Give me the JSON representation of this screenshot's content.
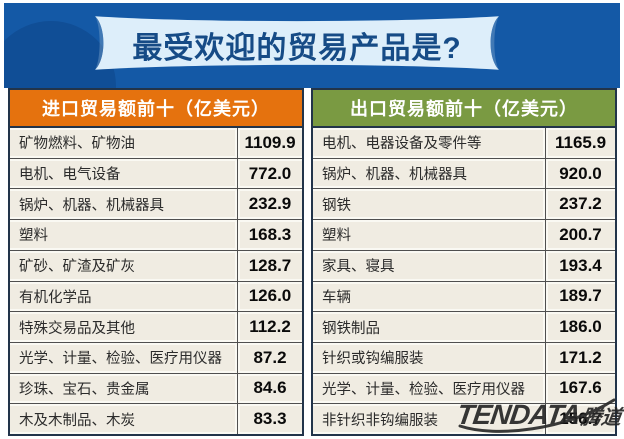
{
  "banner": {
    "title": "最受欢迎的贸易产品是?"
  },
  "watermark": {
    "brand": "TENDATA",
    "brand_cn": "腾道"
  },
  "colors": {
    "background_blue": "#1459a6",
    "ribbon": "#ddeefa",
    "title_text": "#164b86",
    "import_header": "#e5720e",
    "export_header": "#7a9a42",
    "row_background": "#f0ece2",
    "table_border": "#22344a"
  },
  "chart_data": [
    {
      "type": "table",
      "title": "进口贸易额前十（亿美元）",
      "unit": "亿美元",
      "rows": [
        {
          "name": "矿物燃料、矿物油",
          "value": 1109.9,
          "label": "1109.9"
        },
        {
          "name": "电机、电气设备",
          "value": 772.0,
          "label": "772.0"
        },
        {
          "name": "锅炉、机器、机械器具",
          "value": 232.9,
          "label": "232.9"
        },
        {
          "name": "塑料",
          "value": 168.3,
          "label": "168.3"
        },
        {
          "name": "矿砂、矿渣及矿灰",
          "value": 128.7,
          "label": "128.7"
        },
        {
          "name": "有机化学品",
          "value": 126.0,
          "label": "126.0"
        },
        {
          "name": "特殊交易品及其他",
          "value": 112.2,
          "label": "112.2"
        },
        {
          "name": "光学、计量、检验、医疗用仪器",
          "value": 87.2,
          "label": "87.2"
        },
        {
          "name": "珍珠、宝石、贵金属",
          "value": 84.6,
          "label": "84.6"
        },
        {
          "name": "木及木制品、木炭",
          "value": 83.3,
          "label": "83.3"
        }
      ]
    },
    {
      "type": "table",
      "title": "出口贸易额前十（亿美元）",
      "unit": "亿美元",
      "rows": [
        {
          "name": "电机、电器设备及零件等",
          "value": 1165.9,
          "label": "1165.9"
        },
        {
          "name": "锅炉、机器、机械器具",
          "value": 920.0,
          "label": "920.0"
        },
        {
          "name": "钢铁",
          "value": 237.2,
          "label": "237.2"
        },
        {
          "name": "塑料",
          "value": 200.7,
          "label": "200.7"
        },
        {
          "name": "家具、寝具",
          "value": 193.4,
          "label": "193.4"
        },
        {
          "name": "车辆",
          "value": 189.7,
          "label": "189.7"
        },
        {
          "name": "钢铁制品",
          "value": 186.0,
          "label": "186.0"
        },
        {
          "name": "针织或钩编服装",
          "value": 171.2,
          "label": "171.2"
        },
        {
          "name": "光学、计量、检验、医疗用仪器",
          "value": 167.6,
          "label": "167.6"
        },
        {
          "name": "非针织非钩编服装",
          "value": 156.7,
          "label": "156.7"
        }
      ]
    }
  ]
}
